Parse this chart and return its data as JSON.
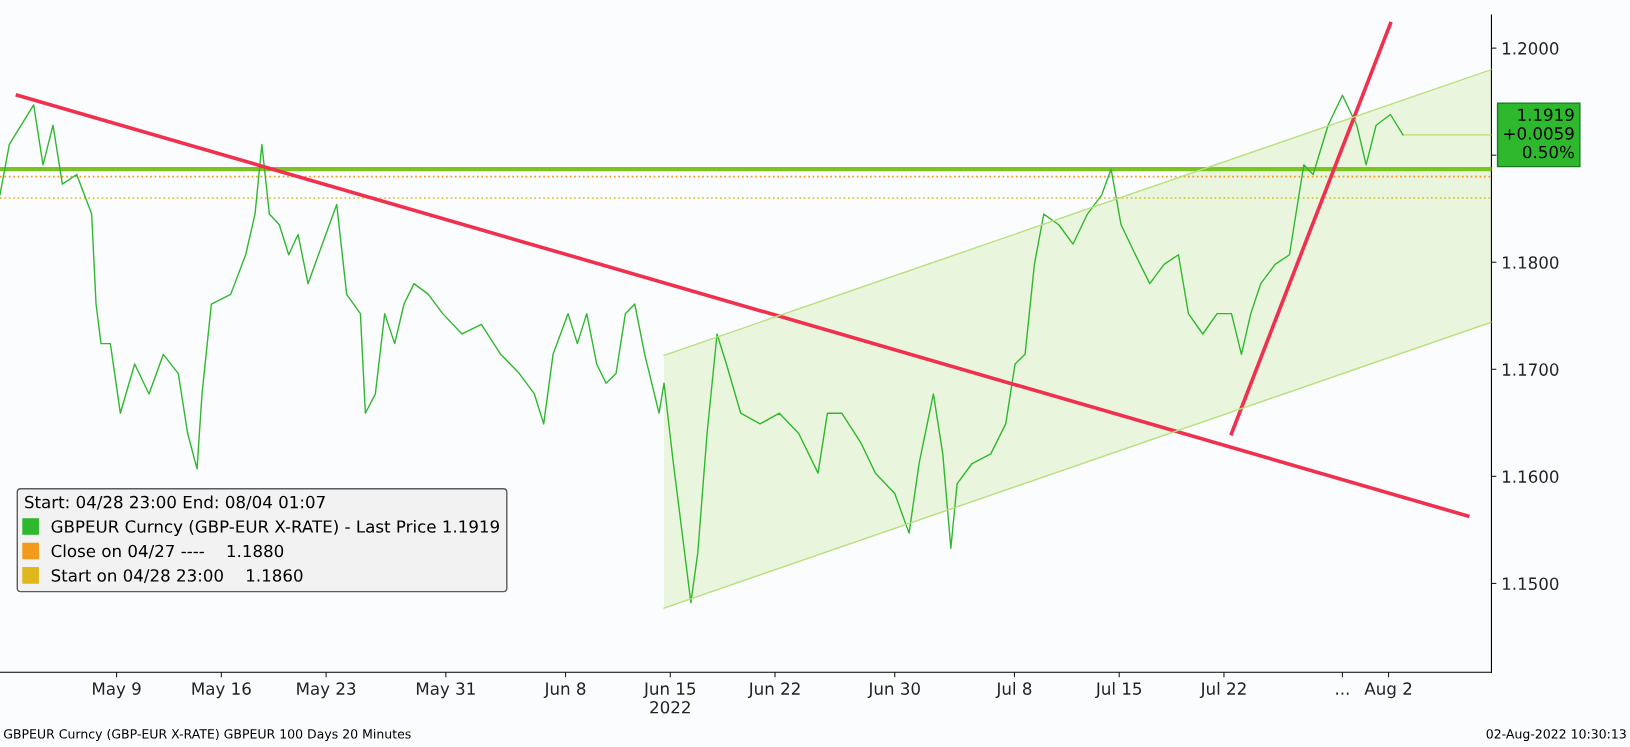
{
  "chart_data": {
    "type": "line",
    "legend_title": "Start: 04/28 23:00 End: 08/04 01:07",
    "series": [
      {
        "name": "GBPEUR Curncy (GBP-EUR X-RATE) - Last Price 1.1919",
        "color": "#2eb82e",
        "x": [
          "2022-05-01T05:00",
          "2022-05-01T20:00",
          "2022-05-03T11:00",
          "2022-05-04T02:00",
          "2022-05-04T18:00",
          "2022-05-05T09:00",
          "2022-05-06T08:00",
          "2022-05-07T08:00",
          "2022-05-07T15:00",
          "2022-05-07T23:00",
          "2022-05-08T14:00",
          "2022-05-09T06:00",
          "2022-05-10T05:00",
          "2022-05-11T04:00",
          "2022-05-12T03:00",
          "2022-05-13T03:00",
          "2022-05-13T18:00",
          "2022-05-14T09:00",
          "2022-05-14T17:00",
          "2022-05-15T08:00",
          "2022-05-16T15:00",
          "2022-05-17T15:00",
          "2022-05-18T06:00",
          "2022-05-18T17:00",
          "2022-05-19T05:00",
          "2022-05-19T21:00",
          "2022-05-20T12:00",
          "2022-05-21T03:00",
          "2022-05-21T19:00",
          "2022-05-22T18:00",
          "2022-05-23T17:00",
          "2022-05-24T09:00",
          "2022-05-25T07:00",
          "2022-05-25T15:00",
          "2022-05-26T07:00",
          "2022-05-26T22:00",
          "2022-05-27T14:00",
          "2022-05-28T05:00",
          "2022-05-28T21:00",
          "2022-05-29T20:00",
          "2022-05-30T19:00",
          "2022-06-01T02:00",
          "2022-06-02T09:00",
          "2022-06-03T16:00",
          "2022-06-04T22:00",
          "2022-06-05T22:00",
          "2022-06-06T13:00",
          "2022-06-07T04:00",
          "2022-06-08T04:00",
          "2022-06-08T19:00",
          "2022-06-09T10:00",
          "2022-06-10T02:00",
          "2022-06-10T17:00",
          "2022-06-11T09:00",
          "2022-06-12T00:00",
          "2022-06-12T15:00",
          "2022-06-13T07:00",
          "2022-06-14T06:00",
          "2022-06-14T14:00",
          "2022-06-15T05:00",
          "2022-06-15T21:00",
          "2022-06-16T09:00",
          "2022-06-16T20:00",
          "2022-06-17T11:00",
          "2022-06-18T03:00",
          "2022-06-18T18:00",
          "2022-06-19T17:00",
          "2022-06-21T00:00",
          "2022-06-22T07:00",
          "2022-06-23T14:00",
          "2022-06-24T21:00",
          "2022-06-25T12:00",
          "2022-06-26T11:00",
          "2022-06-27T18:00",
          "2022-06-28T17:00",
          "2022-06-30T00:00",
          "2022-06-30T23:00",
          "2022-07-01T15:00",
          "2022-07-02T14:00",
          "2022-07-03T05:00",
          "2022-07-03T18:00",
          "2022-07-04T04:00",
          "2022-07-05T04:00",
          "2022-07-06T10:00",
          "2022-07-07T10:00",
          "2022-07-08T01:00",
          "2022-07-08T17:00",
          "2022-07-09T08:00",
          "2022-07-09T23:00",
          "2022-07-10T23:00",
          "2022-07-11T22:00",
          "2022-07-12T21:00",
          "2022-07-13T20:00",
          "2022-07-14T11:00",
          "2022-07-15T03:00",
          "2022-07-16T02:00",
          "2022-07-17T01:00",
          "2022-07-18T00:00",
          "2022-07-18T23:00",
          "2022-07-19T15:00",
          "2022-07-20T14:00",
          "2022-07-21T13:00",
          "2022-07-22T12:00",
          "2022-07-23T04:00",
          "2022-07-23T19:00",
          "2022-07-24T11:00",
          "2022-07-25T10:00",
          "2022-07-26T09:00",
          "2022-07-27T08:00",
          "2022-07-27T23:00",
          "2022-07-28T23:00",
          "2022-07-29T22:00",
          "2022-07-30T21:00",
          "2022-07-31T12:00",
          "2022-08-01T04:00",
          "2022-08-02T03:00",
          "2022-08-02T23:00"
        ],
        "values": [
          1.1863,
          1.191,
          1.1947,
          1.1891,
          1.1928,
          1.1873,
          1.1882,
          1.1845,
          1.1761,
          1.1724,
          1.1724,
          1.1659,
          1.1705,
          1.1677,
          1.1714,
          1.1696,
          1.164,
          1.1607,
          1.1677,
          1.1761,
          1.177,
          1.1807,
          1.1845,
          1.191,
          1.1845,
          1.1835,
          1.1807,
          1.1826,
          1.178,
          1.1817,
          1.1854,
          1.177,
          1.1752,
          1.1659,
          1.1677,
          1.1752,
          1.1724,
          1.1761,
          1.178,
          1.177,
          1.1752,
          1.1733,
          1.1742,
          1.1714,
          1.1696,
          1.1677,
          1.1649,
          1.1714,
          1.1752,
          1.1724,
          1.1752,
          1.1705,
          1.1687,
          1.1696,
          1.1752,
          1.1761,
          1.1714,
          1.1659,
          1.1687,
          1.1612,
          1.1538,
          1.1482,
          1.1528,
          1.164,
          1.1733,
          1.1705,
          1.1659,
          1.1649,
          1.1659,
          1.164,
          1.1603,
          1.1659,
          1.1659,
          1.1631,
          1.1603,
          1.1584,
          1.1547,
          1.1612,
          1.1677,
          1.1621,
          1.1533,
          1.1593,
          1.1612,
          1.1621,
          1.1649,
          1.1705,
          1.1714,
          1.1798,
          1.1845,
          1.1835,
          1.1817,
          1.1845,
          1.1863,
          1.1887,
          1.1835,
          1.1807,
          1.178,
          1.1798,
          1.1807,
          1.1752,
          1.1733,
          1.1752,
          1.1752,
          1.1714,
          1.1752,
          1.178,
          1.1798,
          1.1807,
          1.1891,
          1.1882,
          1.1928,
          1.1956,
          1.1928,
          1.1891,
          1.1928,
          1.1938,
          1.1919
        ]
      },
      {
        "type": "line",
        "color": "#f0304f",
        "x": [
          "2022-05-02T09:00",
          "2022-08-07T07:00"
        ],
        "values": [
          1.1956,
          1.1563
        ]
      },
      {
        "type": "line",
        "color": "#f0304f",
        "x": [
          "2022-07-22T12:00",
          "2022-08-02T03:00"
        ],
        "values": [
          1.164,
          1.2023
        ]
      },
      {
        "type": "line",
        "color": "#b8e07a",
        "x": [
          "2022-06-14T14:00",
          "2022-08-08T21:00"
        ],
        "values": [
          1.1713,
          1.198
        ],
        "lower": [
          1.1477,
          1.1744
        ],
        "upper": [
          1.1713,
          1.198
        ]
      },
      {
        "type": "line",
        "color": "#b8e07a",
        "x": [
          "2022-06-14T14:00",
          "2022-08-08T21:00"
        ],
        "values": [
          1.1477,
          1.1744
        ]
      }
    ],
    "ref_lines": [
      {
        "axis": "y",
        "value": 1.1887,
        "color": "#7cc322",
        "line_style": "solid"
      },
      {
        "axis": "y",
        "value": 1.188,
        "label": "Close on 04/27 ----    1.1880",
        "color": "#f29a1c",
        "line_style": "dotted"
      },
      {
        "axis": "y",
        "value": 1.186,
        "label": "Start on 04/28 23:00    1.1860",
        "color": "#e0b81c",
        "line_style": "dotted"
      }
    ],
    "annotations": [
      {
        "text": "1.1919\n+0.0059\n0.50%",
        "x": "2022-08-02T23:00",
        "y": 1.1919
      },
      "GBPEUR Curncy (GBP-EUR X-RATE) GBPEUR 100 Days 20 Minutes",
      "02-Aug-2022 10:30:13"
    ],
    "xlim": [
      "2022-05-01T05:00",
      "2022-08-08T21:00"
    ],
    "xticks": [
      {
        "value": "2022-05-09",
        "label": "May 9"
      },
      {
        "value": "2022-05-16",
        "label": "May 16"
      },
      {
        "value": "2022-05-23",
        "label": "May 23"
      },
      {
        "value": "2022-05-31",
        "label": "May 31"
      },
      {
        "value": "2022-06-08",
        "label": "Jun 8"
      },
      {
        "value": "2022-06-15",
        "label": "Jun 15\n2022"
      },
      {
        "value": "2022-06-22",
        "label": "Jun 22"
      },
      {
        "value": "2022-06-30",
        "label": "Jun 30"
      },
      {
        "value": "2022-07-08",
        "label": "Jul 8"
      },
      {
        "value": "2022-07-15",
        "label": "Jul 15"
      },
      {
        "value": "2022-07-22",
        "label": "Jul 22"
      },
      {
        "value": "2022-07-29T22:00",
        "label": "..."
      },
      {
        "value": "2022-08-02",
        "label": "Aug 2"
      }
    ],
    "ylim": [
      1.1417,
      1.2031
    ],
    "yticks": [
      {
        "value": 1.15,
        "label": "1.1500"
      },
      {
        "value": 1.16,
        "label": "1.1600"
      },
      {
        "value": 1.17,
        "label": "1.1700"
      },
      {
        "value": 1.18,
        "label": "1.1800"
      },
      {
        "value": 1.19,
        "label": null
      },
      {
        "value": 1.2,
        "label": "1.2000"
      }
    ],
    "grid": false,
    "legend": "bottom left",
    "marker": "none"
  }
}
